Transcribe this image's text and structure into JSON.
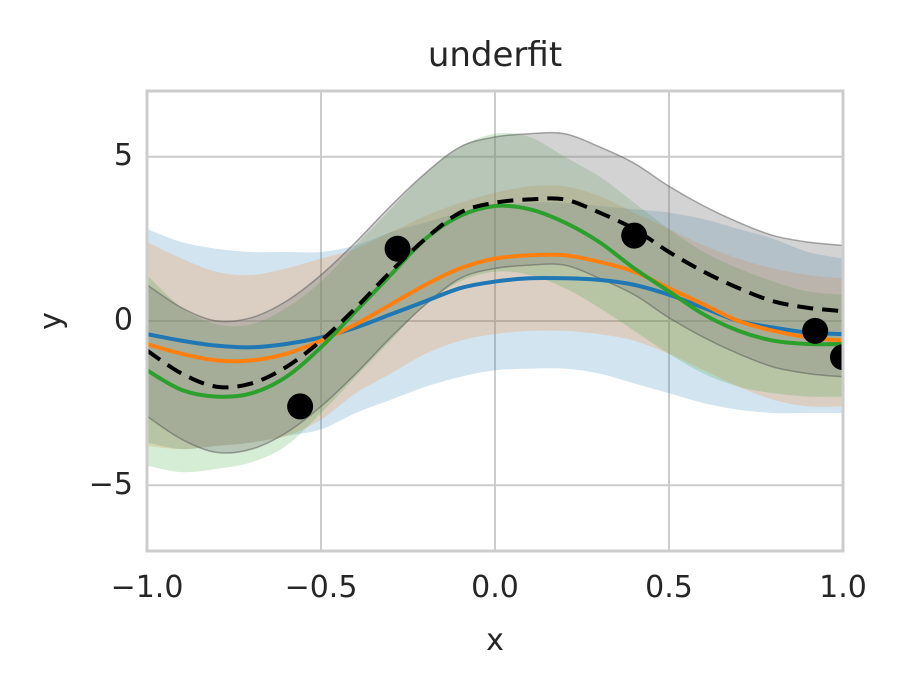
{
  "chart_data": {
    "type": "line",
    "title": "underfit",
    "xlabel": "x",
    "ylabel": "y",
    "xlim": [
      -1.0,
      1.0
    ],
    "ylim": [
      -7,
      7
    ],
    "grid": true,
    "xticks": [
      -1.0,
      -0.5,
      0.0,
      0.5,
      1.0
    ],
    "xtick_labels": [
      "−1.0",
      "−0.5",
      "0.0",
      "0.5",
      "1.0"
    ],
    "yticks": [
      -5,
      0,
      5
    ],
    "ytick_labels": [
      "−5",
      "0",
      "5"
    ],
    "x": [
      -1.0,
      -0.9,
      -0.8,
      -0.7,
      -0.6,
      -0.5,
      -0.4,
      -0.3,
      -0.2,
      -0.1,
      0.0,
      0.1,
      0.2,
      0.3,
      0.4,
      0.5,
      0.6,
      0.7,
      0.8,
      0.9,
      1.0
    ],
    "series": [
      {
        "style": "dashed",
        "color": "#000000",
        "band_color": "#808080",
        "mean": [
          -0.9,
          -1.6,
          -2.0,
          -1.9,
          -1.4,
          -0.6,
          0.4,
          1.5,
          2.5,
          3.3,
          3.6,
          3.7,
          3.7,
          3.3,
          2.8,
          2.1,
          1.5,
          1.0,
          0.6,
          0.4,
          0.3
        ],
        "lower": [
          -2.9,
          -3.6,
          -4.0,
          -3.9,
          -3.4,
          -2.6,
          -1.6,
          -0.5,
          0.5,
          1.3,
          1.6,
          1.7,
          1.7,
          1.3,
          0.8,
          0.1,
          -0.5,
          -1.0,
          -1.4,
          -1.6,
          -1.7
        ],
        "upper": [
          1.1,
          0.4,
          0.0,
          0.1,
          0.6,
          1.4,
          2.4,
          3.5,
          4.5,
          5.3,
          5.6,
          5.7,
          5.7,
          5.3,
          4.8,
          4.1,
          3.5,
          3.0,
          2.6,
          2.4,
          2.3
        ]
      },
      {
        "style": "solid",
        "color": "#1f77b4",
        "mean": [
          -0.4,
          -0.6,
          -0.75,
          -0.8,
          -0.7,
          -0.5,
          -0.2,
          0.2,
          0.6,
          1.0,
          1.2,
          1.3,
          1.3,
          1.25,
          1.1,
          0.8,
          0.4,
          0.0,
          -0.2,
          -0.35,
          -0.4
        ],
        "lower": [
          -3.7,
          -3.9,
          -3.8,
          -3.7,
          -3.5,
          -3.3,
          -2.8,
          -2.4,
          -2.0,
          -1.7,
          -1.5,
          -1.45,
          -1.45,
          -1.6,
          -1.9,
          -2.2,
          -2.5,
          -2.7,
          -2.8,
          -2.8,
          -2.8
        ],
        "upper": [
          2.8,
          2.4,
          2.2,
          2.1,
          2.1,
          2.1,
          2.3,
          2.7,
          3.0,
          3.3,
          3.5,
          3.6,
          3.6,
          3.5,
          3.4,
          3.3,
          3.1,
          2.8,
          2.5,
          2.1,
          1.9
        ]
      },
      {
        "style": "solid",
        "color": "#ff7f0e",
        "mean": [
          -0.7,
          -1.0,
          -1.2,
          -1.2,
          -1.0,
          -0.6,
          -0.1,
          0.5,
          1.1,
          1.6,
          1.9,
          2.0,
          2.0,
          1.8,
          1.5,
          1.0,
          0.5,
          0.0,
          -0.3,
          -0.5,
          -0.6
        ],
        "lower": [
          -3.8,
          -3.9,
          -3.8,
          -3.7,
          -3.5,
          -3.0,
          -2.2,
          -1.6,
          -1.0,
          -0.6,
          -0.4,
          -0.3,
          -0.3,
          -0.4,
          -0.6,
          -1.0,
          -1.5,
          -2.0,
          -2.4,
          -2.6,
          -2.6
        ],
        "upper": [
          2.4,
          1.9,
          1.5,
          1.4,
          1.6,
          1.9,
          2.2,
          2.7,
          3.2,
          3.6,
          3.9,
          4.1,
          4.1,
          3.8,
          3.3,
          2.8,
          2.3,
          1.9,
          1.6,
          1.4,
          1.3
        ]
      },
      {
        "style": "solid",
        "color": "#2ca02c",
        "mean": [
          -1.5,
          -2.1,
          -2.3,
          -2.2,
          -1.7,
          -0.8,
          0.3,
          1.4,
          2.5,
          3.2,
          3.5,
          3.4,
          3.0,
          2.4,
          1.6,
          0.9,
          0.2,
          -0.3,
          -0.6,
          -0.7,
          -0.7
        ],
        "lower": [
          -4.4,
          -4.6,
          -4.5,
          -4.3,
          -3.8,
          -2.8,
          -1.7,
          -0.6,
          0.5,
          1.2,
          1.5,
          1.4,
          1.0,
          0.4,
          -0.3,
          -1.0,
          -1.6,
          -2.0,
          -2.2,
          -2.3,
          -2.3
        ],
        "upper": [
          1.4,
          0.4,
          -0.1,
          -0.1,
          0.4,
          1.2,
          2.3,
          3.4,
          4.5,
          5.3,
          5.7,
          5.6,
          5.0,
          4.4,
          3.6,
          2.8,
          2.1,
          1.6,
          1.2,
          0.9,
          0.8
        ]
      }
    ],
    "points": {
      "color": "#000000",
      "x": [
        -0.56,
        -0.28,
        0.4,
        0.92,
        1.0
      ],
      "y": [
        -2.6,
        2.2,
        2.6,
        -0.3,
        -1.1
      ]
    }
  }
}
